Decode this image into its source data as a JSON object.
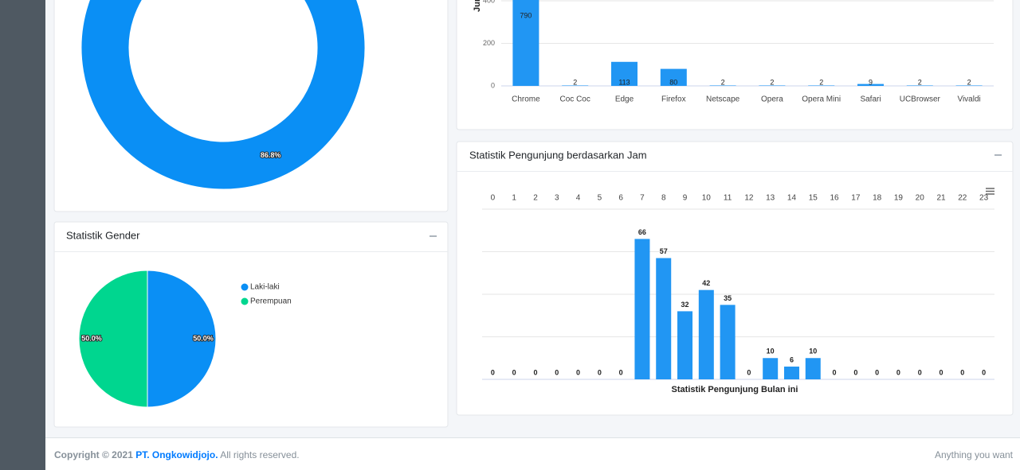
{
  "donut": {
    "type": "donut",
    "values": [
      86.8
    ],
    "value_labels": [
      "86.8%"
    ],
    "colors": [
      "#0a8ff5"
    ]
  },
  "browser_chart": {
    "type": "bar",
    "y_label": "Jumlah",
    "categories": [
      "Chrome",
      "Coc Coc",
      "Edge",
      "Firefox",
      "Netscape",
      "Opera",
      "Opera Mini",
      "Safari",
      "UCBrowser",
      "Vivaldi"
    ],
    "values": [
      790,
      2,
      113,
      80,
      2,
      2,
      2,
      9,
      2,
      2
    ],
    "color": "#2196f3",
    "ylim": [
      0,
      800
    ],
    "yticks": [
      0,
      200,
      400
    ],
    "grid": true
  },
  "gender_chart": {
    "type": "pie",
    "title": "Statistik Gender",
    "categories": [
      "Laki-laki",
      "Perempuan"
    ],
    "values": [
      50,
      50
    ],
    "value_labels": [
      "50.0%",
      "50.0%"
    ],
    "colors": [
      "#0a8ff5",
      "#00d68f"
    ],
    "legend": "top-right"
  },
  "hour_chart": {
    "type": "bar",
    "title": "Statistik Pengunjung berdasarkan Jam",
    "x_label": "Statistik Pengunjung Bulan ini",
    "categories": [
      "0",
      "1",
      "2",
      "3",
      "4",
      "5",
      "6",
      "7",
      "8",
      "9",
      "10",
      "11",
      "12",
      "13",
      "14",
      "15",
      "16",
      "17",
      "18",
      "19",
      "20",
      "21",
      "22",
      "23"
    ],
    "values": [
      0,
      0,
      0,
      0,
      0,
      0,
      0,
      66,
      57,
      32,
      42,
      35,
      0,
      10,
      6,
      10,
      0,
      0,
      0,
      0,
      0,
      0,
      0,
      0
    ],
    "color": "#2196f3",
    "ylim": [
      0,
      80
    ],
    "yticks": [
      0,
      20,
      40,
      60,
      80
    ],
    "grid": true
  },
  "footer": {
    "copyright": "Copyright © 2021",
    "company": "PT. Ongkowidjojo.",
    "rights": "All rights reserved.",
    "right_text": "Anything you want"
  }
}
